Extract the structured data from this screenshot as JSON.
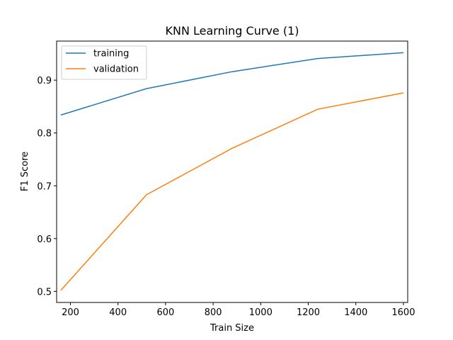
{
  "chart_data": {
    "type": "line",
    "title": "KNN Learning Curve (1)",
    "xlabel": "Train Size",
    "ylabel": "F1 Score",
    "xlim": [
      142,
      1618
    ],
    "ylim": [
      0.479,
      0.974
    ],
    "xticks": [
      200,
      400,
      600,
      800,
      1000,
      1200,
      1400,
      1600
    ],
    "yticks": [
      0.5,
      0.6,
      0.7,
      0.8,
      0.9
    ],
    "legend_position": "upper-left",
    "grid": false,
    "x": [
      160,
      520,
      880,
      1240,
      1600
    ],
    "series": [
      {
        "name": "training",
        "color": "#1f77b4",
        "values": [
          0.834,
          0.884,
          0.916,
          0.941,
          0.952
        ]
      },
      {
        "name": "validation",
        "color": "#ff7f0e",
        "values": [
          0.502,
          0.683,
          0.771,
          0.845,
          0.876
        ]
      }
    ]
  }
}
